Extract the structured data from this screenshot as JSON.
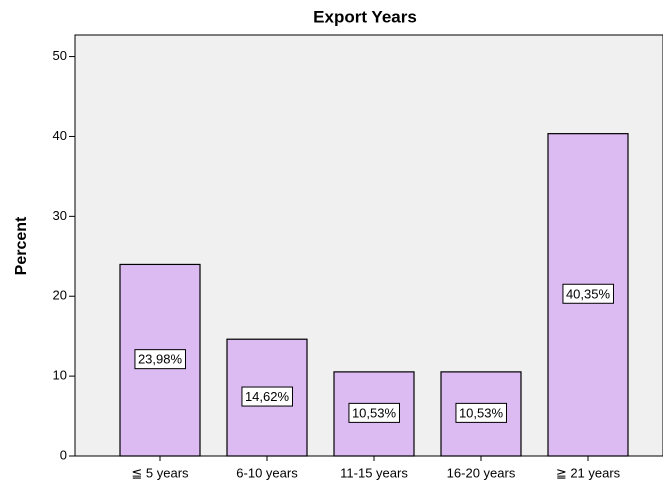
{
  "chart_data": {
    "type": "bar",
    "title": "Export Years",
    "y_label": "Percent",
    "categories": [
      "≦ 5  years",
      "6-10 years",
      "11-15 years",
      "16-20 years",
      "≧ 21 years"
    ],
    "values": [
      23.98,
      14.62,
      10.53,
      10.53,
      40.35
    ],
    "value_labels": [
      "23,98%",
      "14,62%",
      "10,53%",
      "10,53%",
      "40,35%"
    ],
    "color": "#dcbaf2",
    "ylim": [
      0,
      52.7
    ],
    "yticks": [
      0,
      10,
      20,
      30,
      40,
      50
    ],
    "grid": false
  }
}
